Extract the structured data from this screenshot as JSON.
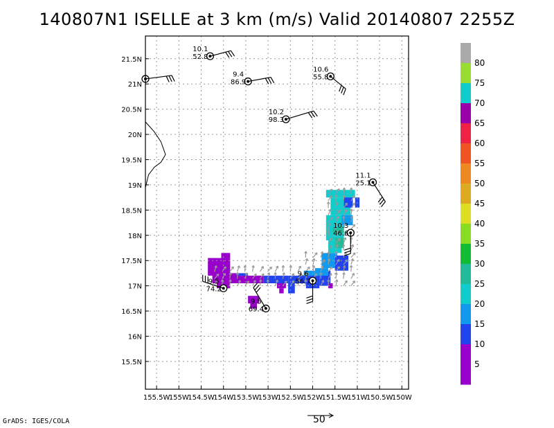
{
  "title": "140807N1 ISELLE at 3 km (m/s) Valid 20140807 2255Z",
  "footer": "GrADS: IGES/COLA",
  "reference_vector_label": "50",
  "chart_data": {
    "type": "scatter",
    "x_ticks": [
      "155.5W",
      "155W",
      "154.5W",
      "154W",
      "153.5W",
      "153W",
      "152.5W",
      "152W",
      "151.5W",
      "151W",
      "150.5W",
      "150W"
    ],
    "y_ticks": [
      "15.5N",
      "16N",
      "16.5N",
      "17N",
      "17.5N",
      "18N",
      "18.5N",
      "19N",
      "19.5N",
      "20N",
      "20.5N",
      "21N",
      "21.5N"
    ],
    "xlim": [
      -155.75,
      -149.85
    ],
    "ylim": [
      14.95,
      21.95
    ],
    "grid": true,
    "colorbar": {
      "labels": [
        "5",
        "10",
        "15",
        "20",
        "25",
        "30",
        "35",
        "40",
        "45",
        "50",
        "55",
        "60",
        "65",
        "70",
        "75",
        "80"
      ],
      "colors": [
        "#9900cc",
        "#9900cc",
        "#2244ee",
        "#1199ee",
        "#11cccc",
        "#22bb99",
        "#11bb33",
        "#88dd22",
        "#dddd22",
        "#ddaa22",
        "#ee8822",
        "#ee5522",
        "#ee2244",
        "#9900aa",
        "#11cccc",
        "#99dd33",
        "#aaaaaa"
      ]
    },
    "stations": [
      {
        "lon": -154.3,
        "lat": 21.55,
        "top": "10.1",
        "bottom": "52.8"
      },
      {
        "lon": -155.75,
        "lat": 21.1,
        "top": "",
        "bottom": ""
      },
      {
        "lon": -153.45,
        "lat": 21.05,
        "top": "9.4",
        "bottom": "86.9"
      },
      {
        "lon": -151.6,
        "lat": 21.15,
        "top": "10.6",
        "bottom": "55.8"
      },
      {
        "lon": -152.6,
        "lat": 20.3,
        "top": "10.2",
        "bottom": "98.3"
      },
      {
        "lon": -150.65,
        "lat": 19.05,
        "top": "11.1",
        "bottom": "25.1"
      },
      {
        "lon": -151.15,
        "lat": 18.05,
        "top": "10.3",
        "bottom": "46.6"
      },
      {
        "lon": -152.0,
        "lat": 17.1,
        "top": "9.6",
        "bottom": "56.7"
      },
      {
        "lon": -154.0,
        "lat": 16.95,
        "top": "9.5",
        "bottom": "74.2"
      },
      {
        "lon": -153.05,
        "lat": 16.55,
        "top": "9.5",
        "bottom": "69.4"
      }
    ]
  }
}
